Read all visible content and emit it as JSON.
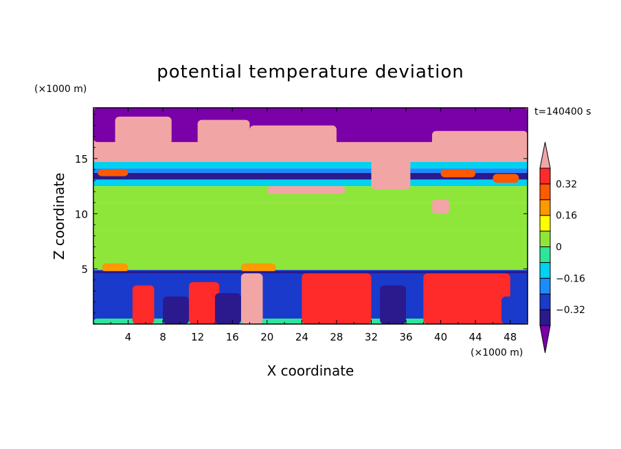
{
  "chart_data": {
    "type": "heatmap",
    "title": "potential temperature deviation",
    "xlabel": "X coordinate",
    "ylabel": "Z coordinate",
    "x_unit": "(×1000 m)",
    "y_unit": "(×1000 m)",
    "time_label": "t=140400 s",
    "xlim": [
      0,
      50
    ],
    "ylim": [
      0,
      19.6
    ],
    "x_ticks": [
      4,
      8,
      12,
      16,
      20,
      24,
      28,
      32,
      36,
      40,
      44,
      48
    ],
    "y_ticks": [
      5,
      10,
      15
    ],
    "colorbar": {
      "levels": [
        -0.4,
        -0.32,
        -0.24,
        -0.16,
        -0.08,
        0,
        0.08,
        0.16,
        0.24,
        0.32,
        0.4
      ],
      "tick_labels": [
        "0.32",
        "0.16",
        "0",
        "−0.16",
        "−0.32"
      ],
      "tick_values": [
        0.32,
        0.16,
        0,
        -0.16,
        -0.32
      ],
      "colors": [
        "#7a00a8",
        "#2a1a8e",
        "#1a3acc",
        "#1a8cff",
        "#00d2f0",
        "#2ee59a",
        "#8ee63a",
        "#ffff00",
        "#ff9900",
        "#ff5a00",
        "#ff2a2a",
        "#f2a5a5"
      ]
    },
    "layers": [
      {
        "z": [
          14.7,
          19.6
        ],
        "value": 0.45
      },
      {
        "z": [
          14.1,
          14.7
        ],
        "value": -0.14
      },
      {
        "z": [
          13.7,
          14.1
        ],
        "value": -0.22
      },
      {
        "z": [
          13.1,
          13.7
        ],
        "value": -0.35
      },
      {
        "z": [
          12.5,
          13.1
        ],
        "value": -0.12
      },
      {
        "z": [
          11.0,
          12.5
        ],
        "value": 0.02
      },
      {
        "z": [
          8.5,
          11.0
        ],
        "value": 0.06
      },
      {
        "z": [
          4.9,
          8.5
        ],
        "value": 0.03
      },
      {
        "z": [
          0,
          4.9
        ],
        "value": -0.3
      }
    ],
    "features": [
      {
        "x": [
          0,
          50
        ],
        "z": [
          16.5,
          19.6
        ],
        "value": -0.45
      },
      {
        "x": [
          2.5,
          9
        ],
        "z": [
          16.2,
          18.8
        ],
        "value": 0.45
      },
      {
        "x": [
          12,
          18
        ],
        "z": [
          15.3,
          18.5
        ],
        "value": 0.45
      },
      {
        "x": [
          18,
          28
        ],
        "z": [
          15.6,
          18.0
        ],
        "value": 0.45
      },
      {
        "x": [
          39,
          50
        ],
        "z": [
          14.8,
          17.5
        ],
        "value": 0.45
      },
      {
        "x": [
          32,
          36.5
        ],
        "z": [
          12.2,
          15.2
        ],
        "value": 0.45
      },
      {
        "x": [
          20,
          29
        ],
        "z": [
          11.8,
          12.5
        ],
        "value": 0.45
      },
      {
        "x": [
          39,
          41
        ],
        "z": [
          10.0,
          11.3
        ],
        "value": 0.45
      },
      {
        "x": [
          0.5,
          4
        ],
        "z": [
          13.4,
          14.0
        ],
        "value": 0.3
      },
      {
        "x": [
          40,
          44
        ],
        "z": [
          13.3,
          14.0
        ],
        "value": 0.3
      },
      {
        "x": [
          46,
          49
        ],
        "z": [
          12.8,
          13.6
        ],
        "value": 0.3
      },
      {
        "x": [
          1,
          4
        ],
        "z": [
          4.7,
          5.5
        ],
        "value": 0.16
      },
      {
        "x": [
          17,
          21
        ],
        "z": [
          4.7,
          5.5
        ],
        "value": 0.16
      },
      {
        "x": [
          0,
          50
        ],
        "z": [
          4.6,
          4.8
        ],
        "value": -0.35
      },
      {
        "x": [
          0,
          50
        ],
        "z": [
          0,
          0.5
        ],
        "value": -0.05
      },
      {
        "x": [
          4.5,
          7
        ],
        "z": [
          0,
          3.5
        ],
        "value": 0.32
      },
      {
        "x": [
          11,
          14.5
        ],
        "z": [
          0,
          3.8
        ],
        "value": 0.32
      },
      {
        "x": [
          17,
          19.5
        ],
        "z": [
          0,
          4.6
        ],
        "value": 0.45
      },
      {
        "x": [
          24,
          32
        ],
        "z": [
          0,
          4.6
        ],
        "value": 0.32
      },
      {
        "x": [
          38,
          48
        ],
        "z": [
          0,
          4.6
        ],
        "value": 0.32
      },
      {
        "x": [
          14,
          17
        ],
        "z": [
          0,
          2.8
        ],
        "value": -0.38
      },
      {
        "x": [
          8,
          11
        ],
        "z": [
          0,
          2.5
        ],
        "value": -0.38
      },
      {
        "x": [
          33,
          36
        ],
        "z": [
          0,
          3.5
        ],
        "value": -0.38
      },
      {
        "x": [
          47,
          50
        ],
        "z": [
          0,
          2.5
        ],
        "value": -0.3
      }
    ]
  }
}
